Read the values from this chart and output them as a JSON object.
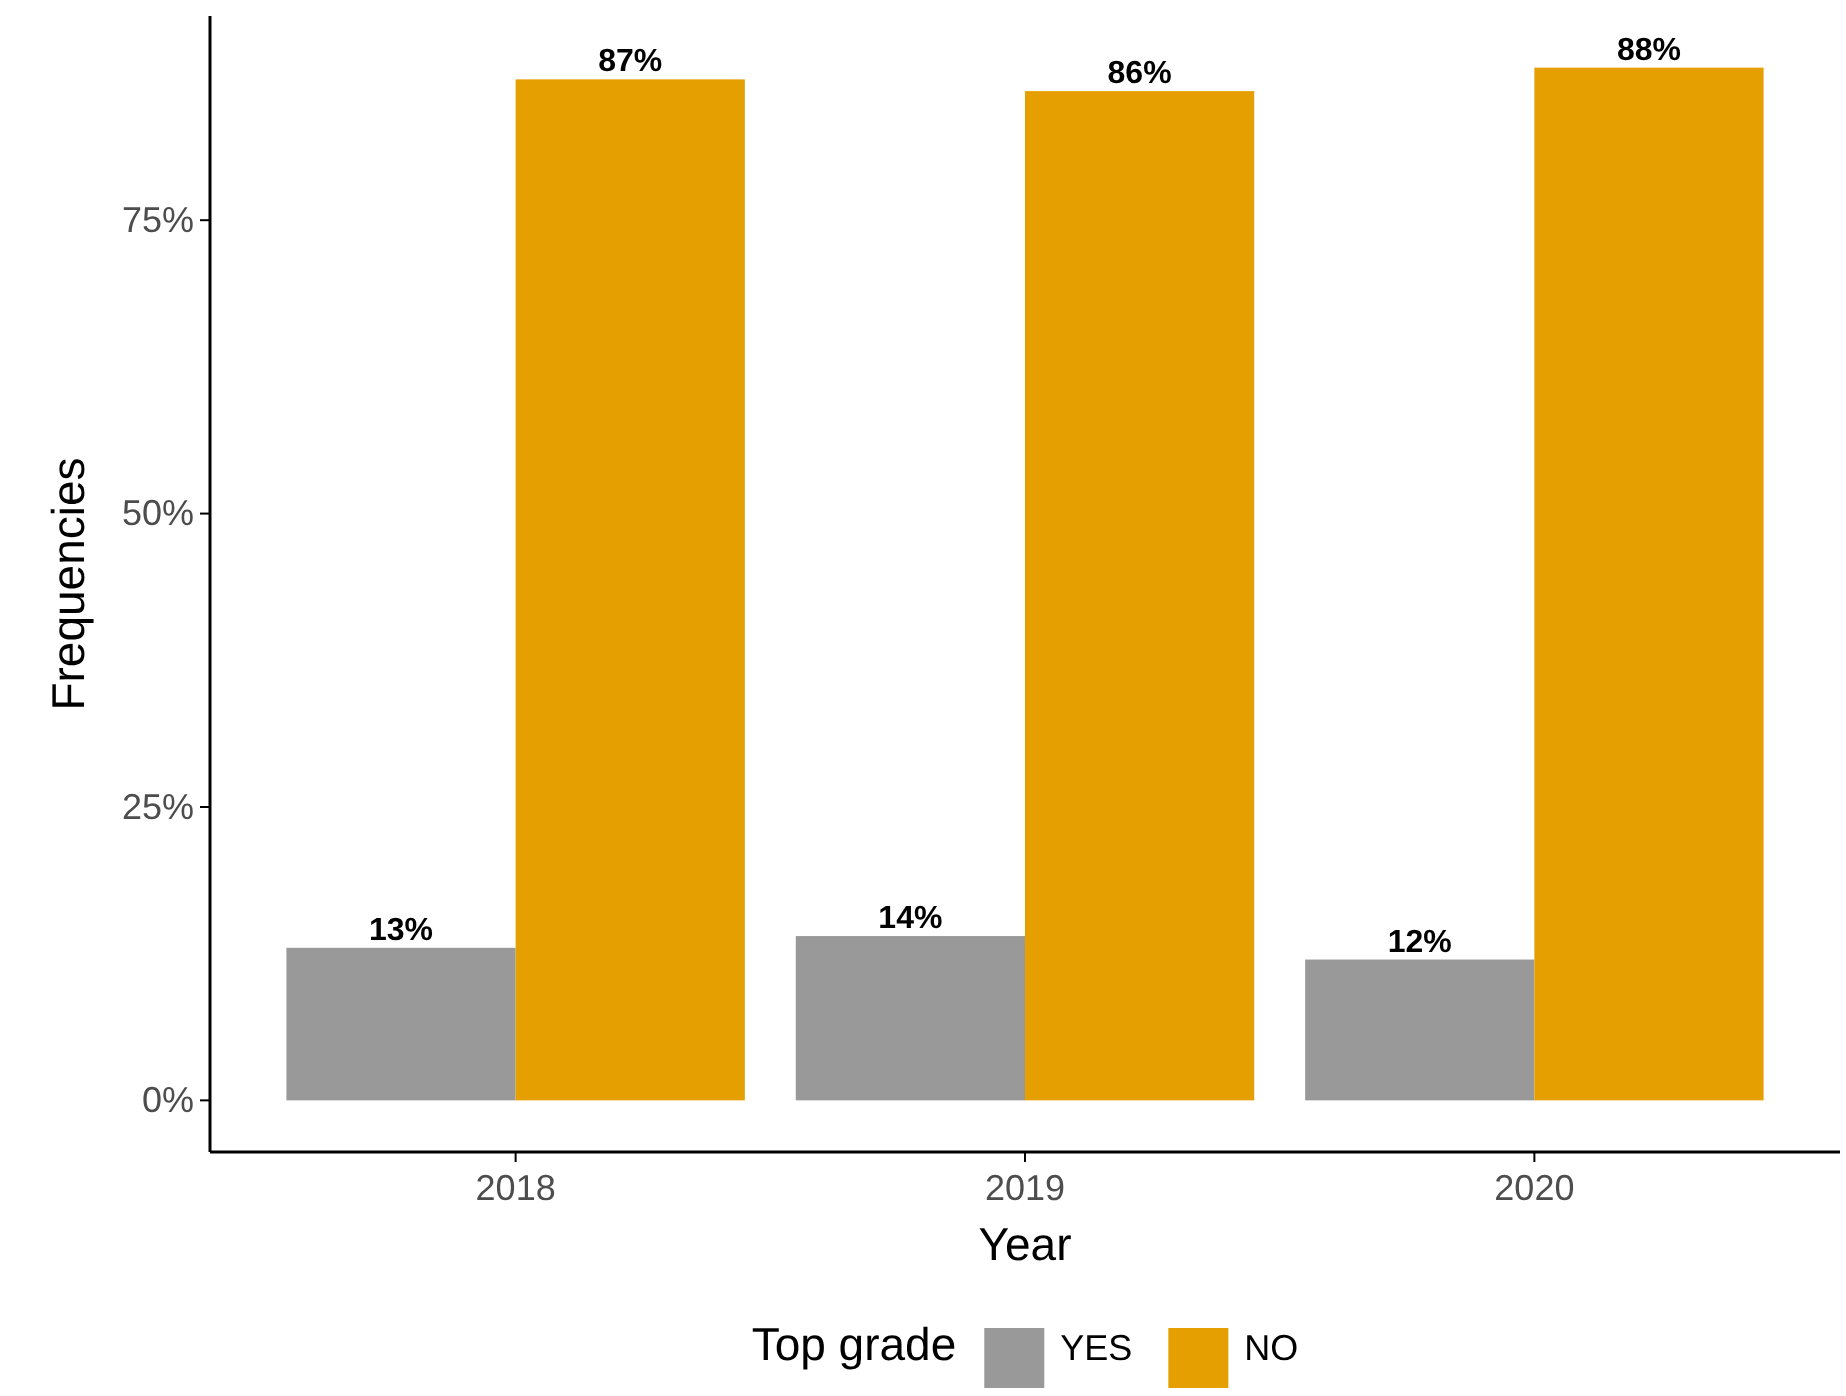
{
  "chart_data": {
    "type": "bar",
    "xlabel": "Year",
    "ylabel": "Frequencies",
    "legend_title": "Top grade",
    "categories": [
      "2018",
      "2019",
      "2020"
    ],
    "series": [
      {
        "name": "YES",
        "color": "#999999",
        "values": [
          13,
          14,
          12
        ],
        "value_labels": [
          "13%",
          "14%",
          "12%"
        ]
      },
      {
        "name": "NO",
        "color": "#e69f00",
        "values": [
          87,
          86,
          88
        ],
        "value_labels": [
          "87%",
          "86%",
          "88%"
        ]
      }
    ],
    "ylim": [
      -4.4,
      92.4
    ],
    "yticks": [
      {
        "value": 0,
        "label": "0%"
      },
      {
        "value": 25,
        "label": "25%"
      },
      {
        "value": 50,
        "label": "50%"
      },
      {
        "value": 75,
        "label": "75%"
      }
    ],
    "grid": false,
    "legend": "bottom"
  }
}
